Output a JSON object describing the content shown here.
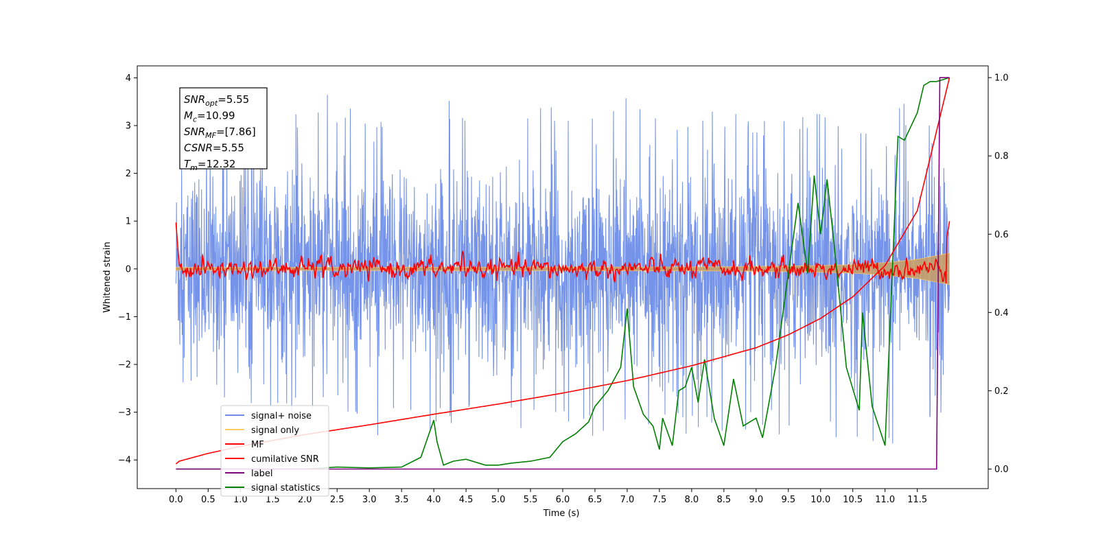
{
  "chart_data": {
    "type": "line",
    "xlabel": "Time (s)",
    "ylabel": "Whitened strain",
    "xlim": [
      -0.6,
      12.6
    ],
    "ylim": [
      -4.6,
      4.25
    ],
    "y2lim": [
      -0.05,
      1.03
    ],
    "xticks": [
      "0.0",
      "0.5",
      "1.0",
      "1.5",
      "2.0",
      "2.5",
      "3.0",
      "3.5",
      "4.0",
      "4.5",
      "5.0",
      "5.5",
      "6.0",
      "6.5",
      "7.0",
      "7.5",
      "8.0",
      "8.5",
      "9.0",
      "9.5",
      "10.0",
      "10.5",
      "11.0",
      "11.5"
    ],
    "yticks": [
      "4",
      "3",
      "2",
      "1",
      "0",
      "−1",
      "−2",
      "−3",
      "−4"
    ],
    "y2ticks": [
      "1.0",
      "0.8",
      "0.6",
      "0.4",
      "0.2",
      "0.0"
    ],
    "annotation": {
      "lines": [
        {
          "sym": "SNR",
          "sub": "opt",
          "val": "=5.55"
        },
        {
          "sym": "M",
          "sub": "c",
          "val": "=10.99"
        },
        {
          "sym": "SNR",
          "sub": "MF",
          "val": "=[7.86]"
        },
        {
          "sym": "CSNR",
          "sub": "",
          "val": "=5.55"
        },
        {
          "sym": "T",
          "sub": "m",
          "val": "=12.32"
        }
      ]
    },
    "legend": {
      "placement": "lower-left",
      "entries": [
        {
          "label": "signal+ noise",
          "color": "#6e8de8"
        },
        {
          "label": "signal only",
          "color": "#ffc966"
        },
        {
          "label": "MF",
          "color": "#ff0000"
        },
        {
          "label": "cumilative SNR",
          "color": "#ff0000"
        },
        {
          "label": "label",
          "color": "#800080"
        },
        {
          "label": "signal statistics",
          "color": "#008000"
        }
      ]
    },
    "series": [
      {
        "name": "signal+ noise",
        "axis": "left",
        "color": "#6e8de8",
        "envelope": {
          "x": [
            0.0,
            0.25,
            0.5,
            1.0,
            1.5,
            2.0,
            2.5,
            3.0,
            3.5,
            4.0,
            5.0,
            6.0,
            7.0,
            8.0,
            9.0,
            10.0,
            11.0,
            11.5,
            12.0
          ],
          "upper_peak": [
            2.4,
            2.8,
            3.0,
            2.6,
            3.3,
            3.4,
            3.85,
            3.25,
            3.4,
            3.6,
            3.3,
            3.4,
            3.6,
            3.3,
            3.3,
            3.3,
            3.25,
            3.65,
            2.5
          ],
          "lower_peak": [
            -2.2,
            -2.6,
            -3.1,
            -3.2,
            -3.3,
            -3.0,
            -3.0,
            -3.55,
            -3.3,
            -3.4,
            -3.3,
            -3.4,
            -3.6,
            -3.5,
            -3.4,
            -3.65,
            -3.95,
            -3.4,
            -2.9
          ]
        }
      },
      {
        "name": "signal only",
        "axis": "left",
        "color": "#ffc966",
        "x": [
          0.0,
          8.0,
          9.0,
          10.0,
          10.5,
          11.0,
          11.5,
          12.0
        ],
        "amplitude": [
          0.03,
          0.04,
          0.05,
          0.07,
          0.09,
          0.13,
          0.2,
          0.33
        ]
      },
      {
        "name": "MF",
        "axis": "left",
        "color": "#ff0000",
        "x": [
          0.0,
          0.05,
          0.1,
          0.3,
          0.6,
          1.0,
          2.0,
          2.25,
          3.0,
          4.0,
          4.45,
          5.0,
          6.0,
          7.0,
          8.0,
          9.0,
          10.0,
          11.0,
          11.9,
          12.0
        ],
        "y": [
          0.97,
          0.1,
          -0.05,
          0.05,
          -0.05,
          0.05,
          -0.05,
          0.35,
          -0.05,
          0.05,
          0.45,
          -0.05,
          0.05,
          -0.05,
          0.05,
          -0.05,
          0.05,
          -0.05,
          0.15,
          1.0
        ]
      },
      {
        "name": "cumilative SNR",
        "axis": "right",
        "color": "#ff0000",
        "x": [
          0.0,
          0.05,
          0.5,
          1.0,
          2.0,
          3.0,
          4.0,
          5.0,
          6.0,
          7.0,
          8.0,
          9.0,
          9.5,
          10.0,
          10.5,
          11.0,
          11.5,
          12.0
        ],
        "y": [
          0.013,
          0.02,
          0.04,
          0.058,
          0.088,
          0.113,
          0.14,
          0.166,
          0.194,
          0.226,
          0.264,
          0.31,
          0.343,
          0.385,
          0.44,
          0.52,
          0.66,
          1.0
        ]
      },
      {
        "name": "label",
        "axis": "right",
        "color": "#800080",
        "x": [
          0.0,
          11.8,
          11.85,
          12.0
        ],
        "y": [
          0.0,
          0.0,
          1.0,
          1.0
        ]
      },
      {
        "name": "signal statistics",
        "axis": "right",
        "color": "#008000",
        "x": [
          0.0,
          1.0,
          2.0,
          2.5,
          3.0,
          3.5,
          3.8,
          4.0,
          4.05,
          4.15,
          4.3,
          4.5,
          4.8,
          5.0,
          5.2,
          5.5,
          5.8,
          6.0,
          6.2,
          6.4,
          6.5,
          6.7,
          6.9,
          7.0,
          7.1,
          7.25,
          7.4,
          7.5,
          7.55,
          7.7,
          7.8,
          7.9,
          8.0,
          8.1,
          8.2,
          8.35,
          8.5,
          8.65,
          8.8,
          9.0,
          9.1,
          9.3,
          9.5,
          9.65,
          9.8,
          9.9,
          10.0,
          10.1,
          10.2,
          10.4,
          10.6,
          10.65,
          10.8,
          11.0,
          11.2,
          11.3,
          11.5,
          11.6,
          11.7,
          11.8,
          12.0
        ],
        "y": [
          0.0,
          0.0,
          0.0,
          0.005,
          0.003,
          0.005,
          0.03,
          0.125,
          0.07,
          0.01,
          0.02,
          0.025,
          0.01,
          0.01,
          0.015,
          0.02,
          0.03,
          0.07,
          0.09,
          0.12,
          0.16,
          0.2,
          0.26,
          0.41,
          0.21,
          0.14,
          0.11,
          0.05,
          0.13,
          0.06,
          0.2,
          0.21,
          0.26,
          0.17,
          0.28,
          0.13,
          0.06,
          0.23,
          0.11,
          0.13,
          0.08,
          0.26,
          0.5,
          0.68,
          0.5,
          0.75,
          0.6,
          0.74,
          0.59,
          0.26,
          0.15,
          0.4,
          0.16,
          0.06,
          0.85,
          0.84,
          0.91,
          0.98,
          0.99,
          0.99,
          1.0
        ]
      }
    ]
  }
}
